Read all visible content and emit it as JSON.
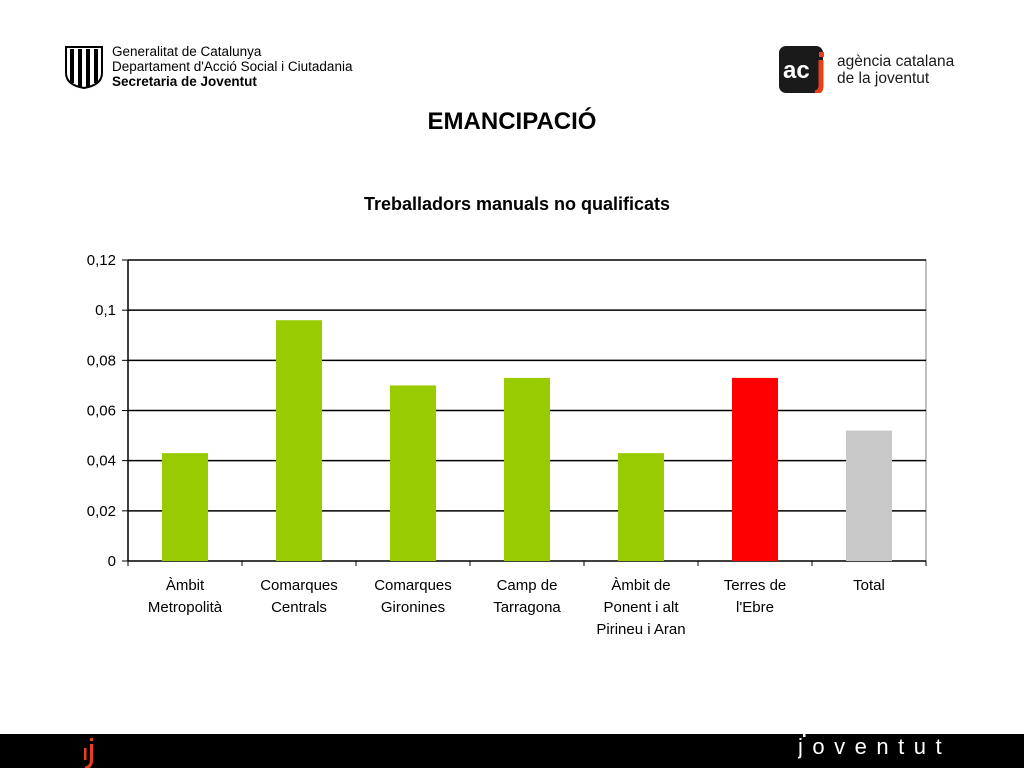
{
  "header": {
    "generalitat_lines": [
      "Generalitat de Catalunya",
      "Departament d'Acció Social i Ciutadania",
      "Secretaria de Joventut"
    ],
    "acj_mark": "ac",
    "acj_lines": [
      "agència catalana",
      "de la joventut"
    ]
  },
  "slide": {
    "title": "EMANCIPACIÓ"
  },
  "footer": {
    "brand": "joventut"
  },
  "colors": {
    "green": "#99cc00",
    "red": "#ff0000",
    "gray": "#c8c8c8",
    "acj_accent": "#e8401c"
  },
  "chart_data": {
    "type": "bar",
    "title": "Treballadors manuals no qualificats",
    "categories": [
      [
        "Àmbit",
        "Metropolità"
      ],
      [
        "Comarques",
        "Centrals"
      ],
      [
        "Comarques",
        "Gironines"
      ],
      [
        "Camp de",
        "Tarragona"
      ],
      [
        "Àmbit de",
        "Ponent i alt",
        "Pirineu i Aran"
      ],
      [
        "Terres de",
        "l'Ebre"
      ],
      [
        "Total"
      ]
    ],
    "values": [
      0.043,
      0.096,
      0.07,
      0.073,
      0.043,
      0.073,
      0.052
    ],
    "bar_colors": [
      "#99cc00",
      "#99cc00",
      "#99cc00",
      "#99cc00",
      "#99cc00",
      "#ff0000",
      "#c8c8c8"
    ],
    "ylim": [
      0,
      0.12
    ],
    "yticks": [
      0,
      0.02,
      0.04,
      0.06,
      0.08,
      0.1,
      0.12
    ],
    "ytick_labels": [
      "0",
      "0,02",
      "0,04",
      "0,06",
      "0,08",
      "0,1",
      "0,12"
    ],
    "xlabel": "",
    "ylabel": "",
    "grid": true,
    "legend": false
  }
}
